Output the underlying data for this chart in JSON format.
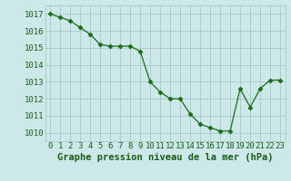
{
  "x": [
    0,
    1,
    2,
    3,
    4,
    5,
    6,
    7,
    8,
    9,
    10,
    11,
    12,
    13,
    14,
    15,
    16,
    17,
    18,
    19,
    20,
    21,
    22,
    23
  ],
  "y": [
    1017.0,
    1016.8,
    1016.6,
    1016.2,
    1015.8,
    1015.2,
    1015.1,
    1015.1,
    1015.1,
    1014.8,
    1013.0,
    1012.4,
    1012.0,
    1012.0,
    1011.1,
    1010.5,
    1010.3,
    1010.1,
    1010.1,
    1012.6,
    1011.5,
    1012.6,
    1013.1,
    1013.1
  ],
  "line_color": "#1a6b1a",
  "marker": "D",
  "marker_size": 2.5,
  "bg_color": "#cce8e8",
  "grid_color": "#aac8c8",
  "xlabel": "Graphe pression niveau de la mer (hPa)",
  "xlabel_color": "#1a5c1a",
  "xlabel_fontsize": 7.5,
  "tick_label_color": "#1a5c1a",
  "tick_fontsize": 6.5,
  "ylim": [
    1009.5,
    1017.5
  ],
  "yticks": [
    1010,
    1011,
    1012,
    1013,
    1014,
    1015,
    1016,
    1017
  ],
  "xlim": [
    -0.5,
    23.5
  ],
  "xticks": [
    0,
    1,
    2,
    3,
    4,
    5,
    6,
    7,
    8,
    9,
    10,
    11,
    12,
    13,
    14,
    15,
    16,
    17,
    18,
    19,
    20,
    21,
    22,
    23
  ]
}
